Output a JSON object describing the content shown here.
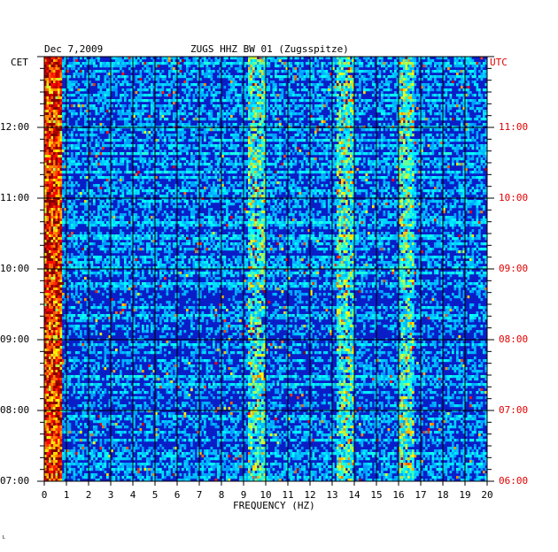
{
  "header": {
    "date": "Dec 7,2009",
    "station": "ZUGS HHZ BW 01 (Zugsspitze)",
    "left_tz": "CET",
    "right_tz": "UTC"
  },
  "footer": {
    "mark": "ᴸ"
  },
  "colors": {
    "background": "#0a1ec8",
    "grid": "#000000",
    "utc_text": "#e00000"
  },
  "chart_data": {
    "type": "heatmap",
    "title": "ZUGS HHZ BW 01 (Zugsspitze)",
    "xlabel": "FREQUENCY (HZ)",
    "ylabel_left": "CET",
    "ylabel_right": "UTC",
    "xlim": [
      0,
      20
    ],
    "x_ticks": [
      "0",
      "1",
      "2",
      "3",
      "4",
      "5",
      "6",
      "7",
      "8",
      "9",
      "10",
      "11",
      "12",
      "13",
      "14",
      "15",
      "16",
      "17",
      "18",
      "19",
      "20"
    ],
    "y_ticks_left": [
      "12:00",
      "11:00",
      "10:00",
      "09:00",
      "08:00",
      "07:00"
    ],
    "y_ticks_right": [
      "11:00",
      "10:00",
      "09:00",
      "08:00",
      "07:00",
      "06:00"
    ],
    "time_range_cet": [
      "07:00",
      "12:48"
    ],
    "grid": true,
    "persistent_peaks_hz": [
      0.3,
      9.6,
      13.6,
      16.4
    ],
    "colormap": "jet"
  }
}
